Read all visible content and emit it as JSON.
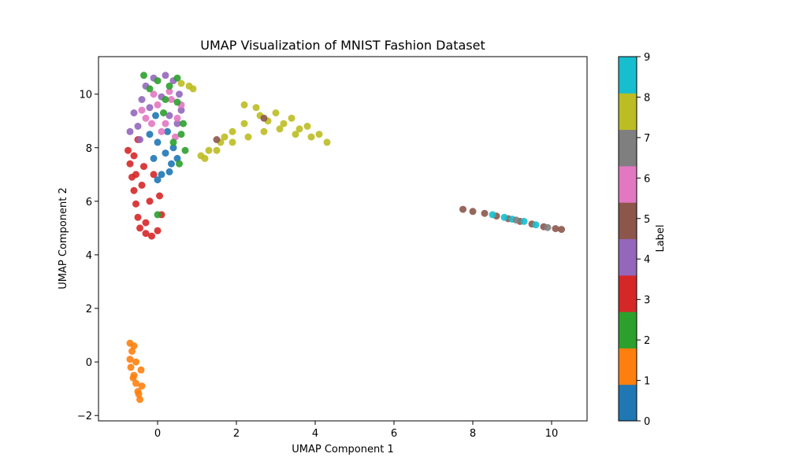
{
  "chart_data": {
    "type": "scatter",
    "title": "UMAP Visualization of MNIST Fashion Dataset",
    "xlabel": "UMAP Component 1",
    "ylabel": "UMAP Component 2",
    "xlim": [
      -1.5,
      10.9
    ],
    "ylim": [
      -2.2,
      11.4
    ],
    "xticks": [
      0,
      2,
      4,
      6,
      8,
      10
    ],
    "yticks": [
      -2,
      0,
      2,
      4,
      6,
      8,
      10
    ],
    "grid": false,
    "colorbar": {
      "label": "Label",
      "ticks": [
        0,
        1,
        2,
        3,
        4,
        5,
        6,
        7,
        8,
        9
      ],
      "colors": [
        "#1f77b4",
        "#ff7f0e",
        "#2ca02c",
        "#d62728",
        "#9467bd",
        "#8c564b",
        "#e377c2",
        "#7f7f7f",
        "#bcbd22",
        "#17becf"
      ]
    },
    "clusters": [
      {
        "label": 1,
        "points": [
          [
            -0.7,
            0.7
          ],
          [
            -0.65,
            0.4
          ],
          [
            -0.7,
            0.1
          ],
          [
            -0.68,
            -0.2
          ],
          [
            -0.6,
            -0.5
          ],
          [
            -0.55,
            -0.8
          ],
          [
            -0.5,
            -1.1
          ],
          [
            -0.45,
            -1.4
          ],
          [
            -0.4,
            -0.9
          ],
          [
            -0.42,
            -0.3
          ],
          [
            -0.6,
            0.6
          ],
          [
            -0.55,
            0.0
          ],
          [
            -0.48,
            -1.2
          ],
          [
            -0.62,
            -0.6
          ]
        ]
      },
      {
        "label": 3,
        "points": [
          [
            -0.75,
            7.9
          ],
          [
            -0.7,
            7.4
          ],
          [
            -0.65,
            6.9
          ],
          [
            -0.6,
            6.4
          ],
          [
            -0.55,
            5.9
          ],
          [
            -0.5,
            5.4
          ],
          [
            -0.45,
            5.0
          ],
          [
            -0.3,
            4.8
          ],
          [
            -0.15,
            4.7
          ],
          [
            0.0,
            4.9
          ],
          [
            0.1,
            5.5
          ],
          [
            -0.2,
            6.0
          ],
          [
            -0.4,
            6.6
          ],
          [
            -0.6,
            7.7
          ],
          [
            -0.5,
            8.3
          ],
          [
            -0.3,
            5.2
          ],
          [
            0.05,
            6.2
          ],
          [
            -0.1,
            7.0
          ],
          [
            -0.35,
            7.3
          ],
          [
            -0.55,
            7.0
          ]
        ]
      },
      {
        "label": 0,
        "points": [
          [
            -0.2,
            8.5
          ],
          [
            0.0,
            8.2
          ],
          [
            0.2,
            7.8
          ],
          [
            0.35,
            7.4
          ],
          [
            0.1,
            7.0
          ],
          [
            -0.1,
            7.6
          ],
          [
            0.25,
            8.6
          ],
          [
            0.4,
            8.0
          ],
          [
            0.0,
            6.8
          ],
          [
            0.3,
            7.1
          ],
          [
            -0.05,
            9.2
          ],
          [
            0.5,
            7.6
          ]
        ]
      },
      {
        "label": 4,
        "points": [
          [
            -0.5,
            8.8
          ],
          [
            -0.6,
            9.3
          ],
          [
            -0.4,
            9.8
          ],
          [
            -0.3,
            10.3
          ],
          [
            -0.1,
            10.6
          ],
          [
            0.2,
            10.7
          ],
          [
            0.4,
            10.5
          ],
          [
            0.55,
            10.0
          ],
          [
            0.6,
            9.4
          ],
          [
            0.5,
            8.9
          ],
          [
            -0.45,
            8.3
          ],
          [
            0.1,
            9.9
          ],
          [
            -0.2,
            9.5
          ],
          [
            0.3,
            9.2
          ],
          [
            -0.7,
            8.6
          ]
        ]
      },
      {
        "label": 6,
        "points": [
          [
            -0.3,
            9.1
          ],
          [
            0.0,
            9.6
          ],
          [
            0.3,
            10.1
          ],
          [
            0.5,
            9.1
          ],
          [
            -0.1,
            10.0
          ],
          [
            0.2,
            8.9
          ],
          [
            0.6,
            9.6
          ],
          [
            -0.4,
            9.4
          ],
          [
            0.1,
            8.6
          ],
          [
            0.45,
            8.4
          ],
          [
            -0.15,
            8.9
          ],
          [
            0.35,
            9.8
          ]
        ]
      },
      {
        "label": 2,
        "points": [
          [
            0.0,
            10.5
          ],
          [
            -0.35,
            10.7
          ],
          [
            0.3,
            10.3
          ],
          [
            0.5,
            9.7
          ],
          [
            0.15,
            9.3
          ],
          [
            0.65,
            8.9
          ],
          [
            0.4,
            8.2
          ],
          [
            0.55,
            7.4
          ],
          [
            0.7,
            7.9
          ],
          [
            0.2,
            9.8
          ],
          [
            -0.2,
            10.2
          ],
          [
            0.0,
            5.5
          ],
          [
            0.5,
            10.6
          ],
          [
            0.6,
            8.5
          ]
        ]
      },
      {
        "label": 8,
        "points": [
          [
            1.1,
            7.7
          ],
          [
            1.3,
            7.9
          ],
          [
            1.6,
            8.2
          ],
          [
            1.9,
            8.6
          ],
          [
            2.2,
            8.9
          ],
          [
            2.6,
            9.2
          ],
          [
            3.0,
            9.3
          ],
          [
            3.4,
            9.1
          ],
          [
            3.8,
            8.8
          ],
          [
            4.1,
            8.5
          ],
          [
            4.3,
            8.2
          ],
          [
            3.9,
            8.4
          ],
          [
            3.5,
            8.5
          ],
          [
            3.1,
            8.7
          ],
          [
            2.7,
            8.6
          ],
          [
            2.3,
            8.4
          ],
          [
            1.9,
            8.2
          ],
          [
            1.5,
            7.9
          ],
          [
            1.2,
            7.6
          ],
          [
            2.5,
            9.5
          ],
          [
            2.2,
            9.6
          ],
          [
            3.2,
            8.9
          ],
          [
            0.8,
            10.3
          ],
          [
            0.9,
            10.2
          ],
          [
            0.6,
            10.4
          ],
          [
            2.8,
            9.0
          ],
          [
            3.6,
            8.7
          ],
          [
            1.7,
            8.4
          ]
        ]
      },
      {
        "label": 5,
        "points": [
          [
            7.75,
            5.7
          ],
          [
            8.0,
            5.62
          ],
          [
            8.3,
            5.55
          ],
          [
            8.6,
            5.45
          ],
          [
            8.9,
            5.35
          ],
          [
            9.2,
            5.25
          ],
          [
            9.5,
            5.15
          ],
          [
            9.8,
            5.05
          ],
          [
            10.1,
            4.98
          ],
          [
            10.25,
            4.95
          ],
          [
            1.5,
            8.3
          ],
          [
            2.7,
            9.1
          ]
        ]
      },
      {
        "label": 9,
        "points": [
          [
            8.5,
            5.5
          ],
          [
            9.0,
            5.33
          ],
          [
            9.3,
            5.25
          ],
          [
            9.6,
            5.12
          ],
          [
            8.8,
            5.4
          ]
        ]
      },
      {
        "label": 7,
        "points": [
          [
            9.1,
            5.3
          ],
          [
            9.9,
            5.02
          ]
        ]
      }
    ]
  }
}
